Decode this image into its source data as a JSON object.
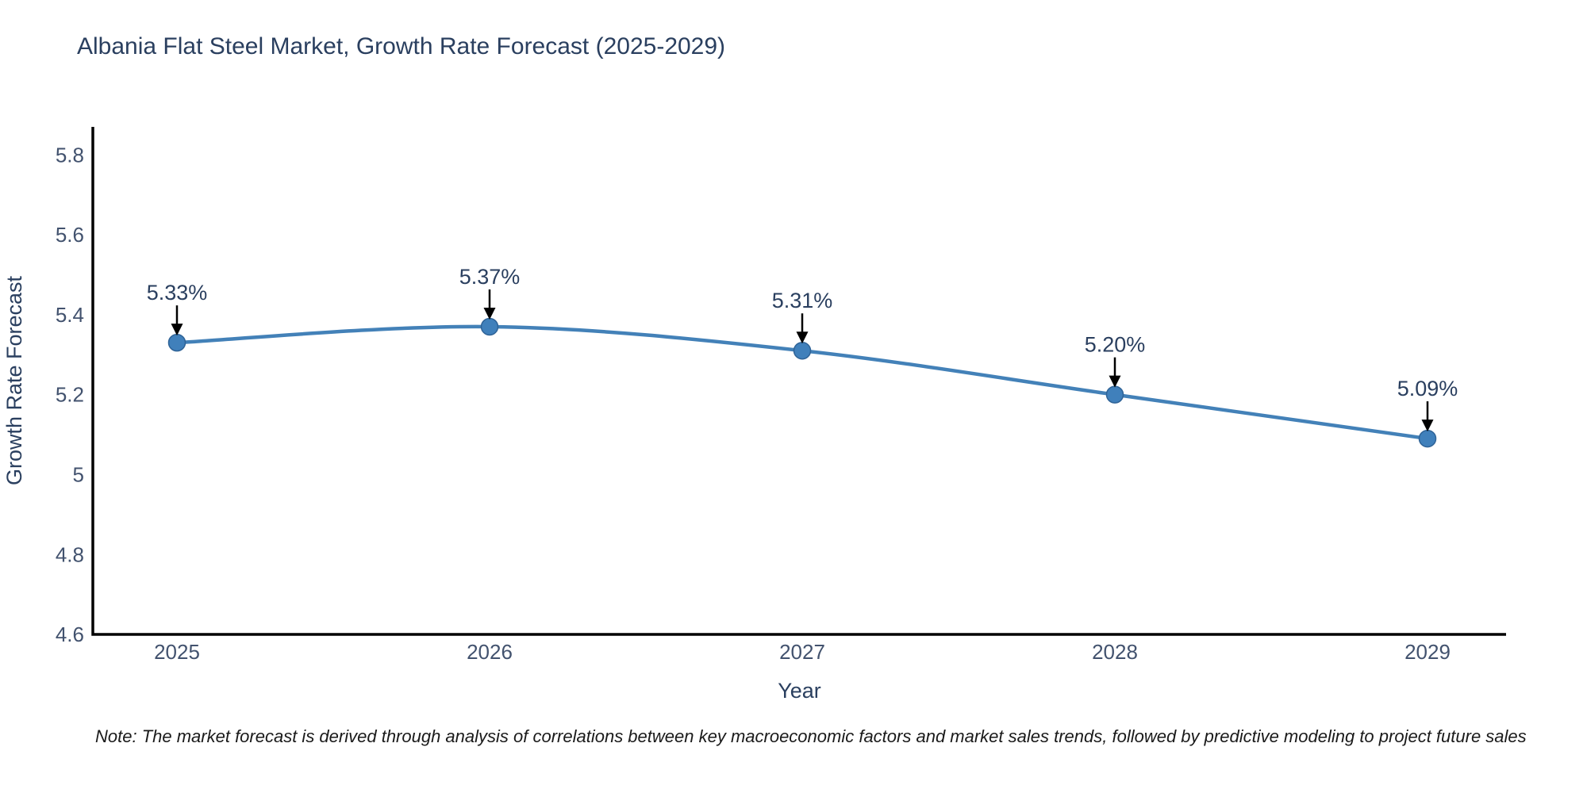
{
  "note": "Note: The market forecast is derived through analysis of correlations between key macroeconomic factors and market sales trends, followed by predictive modeling to project future sales",
  "colors": {
    "background": "#ffffff",
    "line": "#4381b8",
    "marker": "#4080bb",
    "marker_edge": "#2f6397",
    "axis": "#000000",
    "title_text": "#2a3f5f",
    "tick_text": "#42526e",
    "annotation_text": "#2a3f5f",
    "annotation_arrow": "#000000"
  },
  "chart_data": {
    "type": "line",
    "title": "Albania Flat Steel Market, Growth Rate Forecast (2025-2029)",
    "categories": [
      "2025",
      "2026",
      "2027",
      "2028",
      "2029"
    ],
    "x": [
      2025,
      2026,
      2027,
      2028,
      2029
    ],
    "values": [
      5.33,
      5.37,
      5.31,
      5.2,
      5.09
    ],
    "data_labels": [
      "5.33%",
      "5.37%",
      "5.31%",
      "5.20%",
      "5.09%"
    ],
    "xlabel": "Year",
    "ylabel": "Growth Rate Forecast",
    "ylim": [
      4.6,
      5.87
    ],
    "yticks": [
      4.6,
      4.8,
      5.0,
      5.2,
      5.4,
      5.6,
      5.8
    ],
    "ytick_labels": [
      "4.6",
      "4.8",
      "5",
      "5.2",
      "5.4",
      "5.6",
      "5.8"
    ],
    "grid": false,
    "legend": "none",
    "line_shape": "spline",
    "marker": "circle"
  }
}
